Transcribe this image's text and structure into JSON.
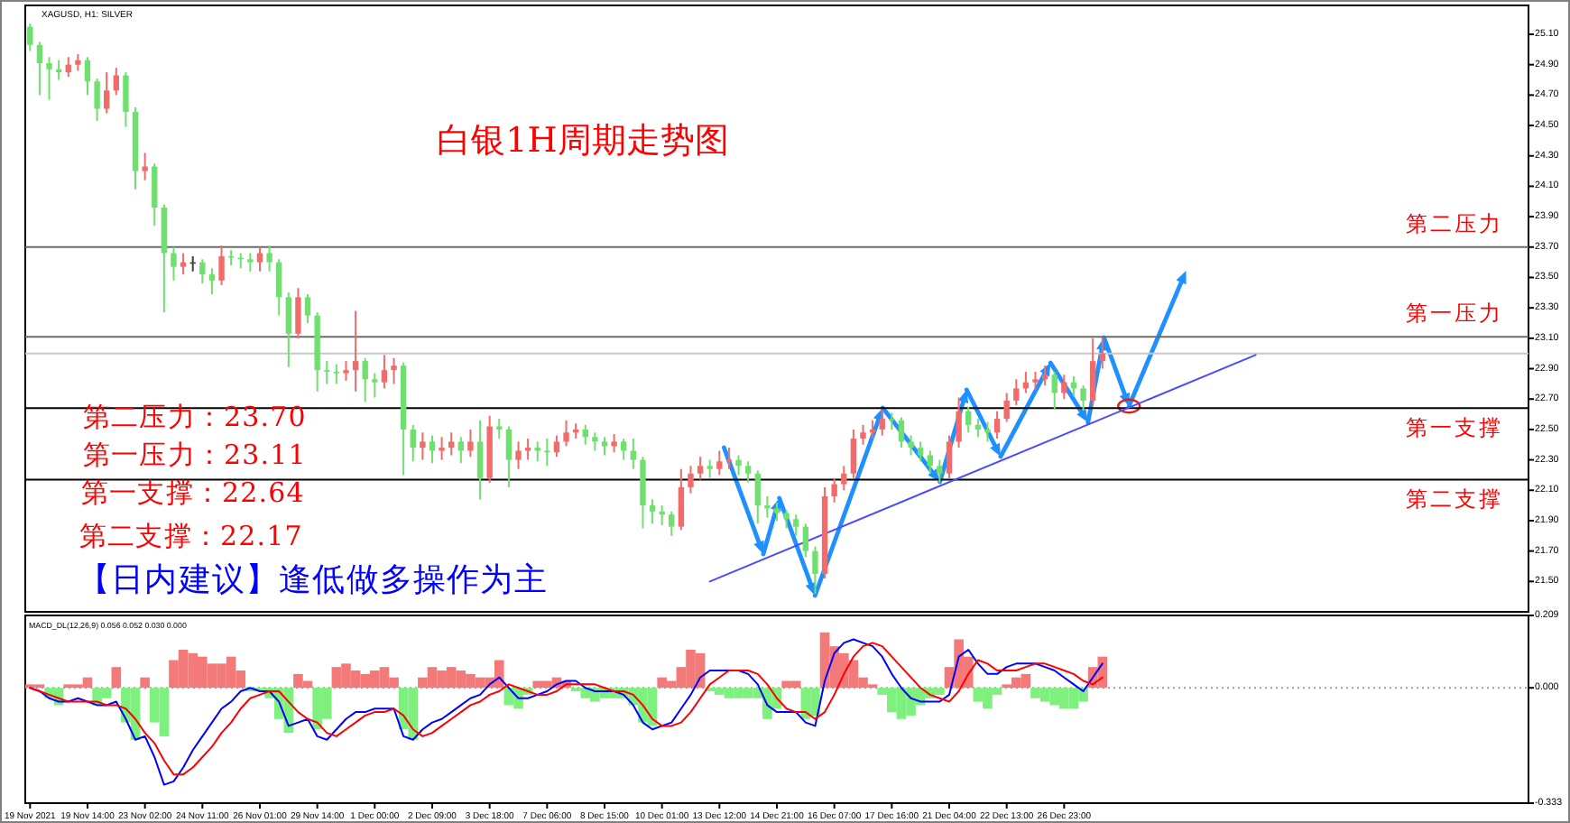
{
  "chart_data": [
    {
      "type": "candlestick",
      "title": "白银1H周期走势图",
      "subtitle": "XAGUSD, H1: SILVER",
      "categories": [
        "19 Nov 2021",
        null,
        null,
        null,
        null,
        null,
        "19 Nov 14:00",
        null,
        null,
        null,
        null,
        null,
        "23 Nov 02:00",
        null,
        null,
        null,
        null,
        null,
        "24 Nov 11:00",
        null,
        null,
        null,
        null,
        null,
        "26 Nov 01:00",
        null,
        null,
        null,
        null,
        null,
        "29 Nov 14:00",
        null,
        null,
        null,
        null,
        null,
        "1 Dec 00:00",
        null,
        null,
        null,
        null,
        null,
        "2 Dec 09:00",
        null,
        null,
        null,
        null,
        null,
        "3 Dec 18:00",
        null,
        null,
        null,
        null,
        null,
        "7 Dec 06:00",
        null,
        null,
        null,
        null,
        null,
        "8 Dec 15:00",
        null,
        null,
        null,
        null,
        null,
        "10 Dec 01:00",
        null,
        null,
        null,
        null,
        null,
        "13 Dec 12:00",
        null,
        null,
        null,
        null,
        null,
        "14 Dec 21:00",
        null,
        null,
        null,
        null,
        null,
        "16 Dec 07:00",
        null,
        null,
        null,
        null,
        null,
        "17 Dec 16:00",
        null,
        null,
        null,
        null,
        null,
        "21 Dec 04:00",
        null,
        null,
        null,
        null,
        null,
        "22 Dec 13:00",
        null,
        null,
        null,
        null,
        null,
        "26 Dec 23:00",
        null,
        null,
        null,
        null,
        null,
        null,
        null,
        null,
        null,
        null,
        null,
        null,
        null,
        null,
        null,
        null,
        null,
        null,
        null,
        null,
        null,
        null,
        null,
        null,
        null,
        null,
        null,
        null,
        null,
        null,
        null,
        null,
        null,
        null,
        null,
        null,
        null,
        null,
        null,
        null,
        null,
        null,
        null,
        null,
        null,
        null,
        null,
        null
      ],
      "ohlc": [
        [
          25.15,
          25.17,
          24.99,
          25.03
        ],
        [
          25.03,
          25.05,
          24.7,
          24.91
        ],
        [
          24.91,
          24.95,
          24.67,
          24.87
        ],
        [
          24.87,
          24.93,
          24.8,
          24.85
        ],
        [
          24.85,
          24.95,
          24.82,
          24.9
        ],
        [
          24.9,
          24.97,
          24.86,
          24.93
        ],
        [
          24.93,
          24.95,
          24.7,
          24.79
        ],
        [
          24.79,
          24.81,
          24.53,
          24.61
        ],
        [
          24.61,
          24.85,
          24.58,
          24.73
        ],
        [
          24.73,
          24.88,
          24.7,
          24.83
        ],
        [
          24.83,
          24.85,
          24.49,
          24.59
        ],
        [
          24.59,
          24.62,
          24.08,
          24.2
        ],
        [
          24.2,
          24.32,
          24.14,
          24.23
        ],
        [
          24.23,
          24.25,
          23.84,
          23.96
        ],
        [
          23.96,
          23.98,
          23.27,
          23.66
        ],
        [
          23.66,
          23.7,
          23.48,
          23.57
        ],
        [
          23.57,
          23.66,
          23.52,
          23.6
        ],
        [
          23.6,
          23.64,
          23.54,
          23.6
        ],
        [
          23.6,
          23.62,
          23.46,
          23.52
        ],
        [
          23.52,
          23.56,
          23.39,
          23.48
        ],
        [
          23.48,
          23.71,
          23.45,
          23.64
        ],
        [
          23.64,
          23.68,
          23.58,
          23.63
        ],
        [
          23.63,
          23.66,
          23.56,
          23.62
        ],
        [
          23.62,
          23.66,
          23.54,
          23.6
        ],
        [
          23.6,
          23.7,
          23.54,
          23.66
        ],
        [
          23.66,
          23.71,
          23.54,
          23.6
        ],
        [
          23.6,
          23.62,
          23.25,
          23.37
        ],
        [
          23.37,
          23.4,
          22.91,
          23.13
        ],
        [
          23.13,
          23.43,
          23.1,
          23.37
        ],
        [
          23.37,
          23.39,
          23.2,
          23.25
        ],
        [
          23.25,
          23.27,
          22.75,
          22.89
        ],
        [
          22.89,
          22.95,
          22.8,
          22.88
        ],
        [
          22.88,
          22.93,
          22.8,
          22.87
        ],
        [
          22.87,
          22.95,
          22.82,
          22.89
        ],
        [
          22.89,
          23.28,
          22.75,
          22.95
        ],
        [
          22.95,
          22.97,
          22.68,
          22.83
        ],
        [
          22.83,
          22.87,
          22.71,
          22.81
        ],
        [
          22.81,
          22.99,
          22.77,
          22.89
        ],
        [
          22.89,
          22.97,
          22.8,
          22.92
        ],
        [
          22.92,
          22.94,
          22.2,
          22.5
        ],
        [
          22.5,
          22.53,
          22.29,
          22.38
        ],
        [
          22.38,
          22.48,
          22.3,
          22.42
        ],
        [
          22.42,
          22.46,
          22.28,
          22.36
        ],
        [
          22.36,
          22.45,
          22.3,
          22.38
        ],
        [
          22.38,
          22.48,
          22.33,
          22.42
        ],
        [
          22.42,
          22.45,
          22.28,
          22.36
        ],
        [
          22.36,
          22.5,
          22.32,
          22.42
        ],
        [
          22.42,
          22.56,
          22.04,
          22.18
        ],
        [
          22.18,
          22.59,
          22.15,
          22.52
        ],
        [
          22.52,
          22.57,
          22.44,
          22.5
        ],
        [
          22.5,
          22.52,
          22.12,
          22.3
        ],
        [
          22.3,
          22.42,
          22.24,
          22.36
        ],
        [
          22.36,
          22.44,
          22.3,
          22.38
        ],
        [
          22.38,
          22.42,
          22.29,
          22.36
        ],
        [
          22.36,
          22.44,
          22.26,
          22.35
        ],
        [
          22.35,
          22.46,
          22.32,
          22.42
        ],
        [
          22.42,
          22.56,
          22.39,
          22.48
        ],
        [
          22.48,
          22.54,
          22.44,
          22.5
        ],
        [
          22.5,
          22.53,
          22.4,
          22.45
        ],
        [
          22.45,
          22.48,
          22.36,
          22.42
        ],
        [
          22.42,
          22.45,
          22.33,
          22.39
        ],
        [
          22.39,
          22.47,
          22.35,
          22.42
        ],
        [
          22.42,
          22.44,
          22.3,
          22.36
        ],
        [
          22.36,
          22.44,
          22.24,
          22.3
        ],
        [
          22.3,
          22.32,
          21.85,
          22.0
        ],
        [
          22.0,
          22.04,
          21.88,
          21.96
        ],
        [
          21.96,
          22.0,
          21.87,
          21.94
        ],
        [
          21.94,
          21.96,
          21.8,
          21.86
        ],
        [
          21.86,
          22.24,
          21.84,
          22.12
        ],
        [
          22.12,
          22.26,
          22.08,
          22.21
        ],
        [
          22.21,
          22.32,
          22.17,
          22.26
        ],
        [
          22.26,
          22.3,
          22.18,
          22.24
        ],
        [
          22.24,
          22.36,
          22.2,
          22.29
        ],
        [
          22.29,
          22.38,
          22.24,
          22.3
        ],
        [
          22.3,
          22.33,
          22.2,
          22.26
        ],
        [
          22.26,
          22.29,
          22.15,
          22.21
        ],
        [
          22.21,
          22.23,
          21.88,
          22.0
        ],
        [
          22.0,
          22.06,
          21.92,
          21.98
        ],
        [
          21.98,
          22.02,
          21.9,
          21.95
        ],
        [
          21.95,
          21.97,
          21.85,
          21.91
        ],
        [
          21.91,
          21.94,
          21.8,
          21.86
        ],
        [
          21.86,
          21.88,
          21.66,
          21.7
        ],
        [
          21.7,
          21.73,
          21.42,
          21.55
        ],
        [
          21.55,
          22.12,
          21.52,
          22.06
        ],
        [
          22.06,
          22.18,
          22.02,
          22.14
        ],
        [
          22.14,
          22.26,
          22.1,
          22.21
        ],
        [
          22.21,
          22.5,
          22.18,
          22.44
        ],
        [
          22.44,
          22.53,
          22.4,
          22.48
        ],
        [
          22.48,
          22.56,
          22.44,
          22.5
        ],
        [
          22.5,
          22.63,
          22.46,
          22.57
        ],
        [
          22.57,
          22.61,
          22.5,
          22.56
        ],
        [
          22.56,
          22.58,
          22.38,
          22.42
        ],
        [
          22.42,
          22.46,
          22.33,
          22.38
        ],
        [
          22.38,
          22.42,
          22.29,
          22.33
        ],
        [
          22.33,
          22.36,
          22.21,
          22.26
        ],
        [
          22.26,
          22.3,
          22.15,
          22.21
        ],
        [
          22.21,
          22.46,
          22.18,
          22.42
        ],
        [
          22.42,
          22.71,
          22.38,
          22.62
        ],
        [
          22.62,
          22.65,
          22.48,
          22.53
        ],
        [
          22.53,
          22.57,
          22.45,
          22.5
        ],
        [
          22.5,
          22.55,
          22.42,
          22.48
        ],
        [
          22.48,
          22.62,
          22.44,
          22.57
        ],
        [
          22.57,
          22.74,
          22.55,
          22.69
        ],
        [
          22.69,
          22.83,
          22.66,
          22.77
        ],
        [
          22.77,
          22.88,
          22.74,
          22.81
        ],
        [
          22.81,
          22.88,
          22.76,
          22.83
        ],
        [
          22.83,
          22.92,
          22.79,
          22.86
        ],
        [
          22.86,
          22.88,
          22.63,
          22.74
        ],
        [
          22.74,
          22.86,
          22.7,
          22.81
        ],
        [
          22.81,
          22.85,
          22.72,
          22.77
        ],
        [
          22.77,
          22.79,
          22.63,
          22.69
        ],
        [
          22.69,
          23.1,
          22.66,
          22.95
        ],
        [
          22.95,
          23.1,
          22.9,
          23.0
        ],
        null,
        null,
        null,
        null,
        null,
        null,
        null,
        null,
        null,
        null,
        null,
        null,
        null,
        null,
        null,
        null,
        null,
        null,
        null,
        null,
        null,
        null,
        null,
        null,
        null,
        null,
        null,
        null,
        null,
        null,
        null,
        null,
        null,
        null,
        null,
        null,
        null,
        null,
        null,
        null,
        null,
        null,
        null,
        null
      ],
      "colors": [
        "#6fe06f",
        "#6fe06f",
        "#6fe06f",
        "#6fe06f",
        "#f26b6b",
        "#f26b6b",
        "#6fe06f",
        "#6fe06f",
        "#f26b6b",
        "#f26b6b",
        "#6fe06f",
        "#6fe06f",
        "#f26b6b",
        "#6fe06f",
        "#6fe06f",
        "#6fe06f",
        "#f26b6b",
        "#404040",
        "#6fe06f",
        "#6fe06f",
        "#f26b6b",
        "#6fe06f",
        "#6fe06f",
        "#6fe06f",
        "#f26b6b",
        "#6fe06f",
        "#6fe06f",
        "#6fe06f",
        "#f26b6b",
        "#6fe06f",
        "#6fe06f",
        "#6fe06f",
        "#6fe06f",
        "#f26b6b",
        "#f26b6b",
        "#6fe06f",
        "#6fe06f",
        "#f26b6b",
        "#f26b6b",
        "#6fe06f",
        "#6fe06f",
        "#f26b6b",
        "#6fe06f",
        "#f26b6b",
        "#f26b6b",
        "#6fe06f",
        "#f26b6b",
        "#6fe06f",
        "#f26b6b",
        "#6fe06f",
        "#6fe06f",
        "#f26b6b",
        "#f26b6b",
        "#6fe06f",
        "#6fe06f",
        "#f26b6b",
        "#f26b6b",
        "#f26b6b",
        "#6fe06f",
        "#6fe06f",
        "#6fe06f",
        "#f26b6b",
        "#6fe06f",
        "#6fe06f",
        "#6fe06f",
        "#6fe06f",
        "#6fe06f",
        "#6fe06f",
        "#f26b6b",
        "#f26b6b",
        "#f26b6b",
        "#6fe06f",
        "#f26b6b",
        "#f26b6b",
        "#6fe06f",
        "#6fe06f",
        "#6fe06f",
        "#6fe06f",
        "#6fe06f",
        "#6fe06f",
        "#6fe06f",
        "#6fe06f",
        "#6fe06f",
        "#f26b6b",
        "#f26b6b",
        "#f26b6b",
        "#f26b6b",
        "#f26b6b",
        "#f26b6b",
        "#f26b6b",
        "#6fe06f",
        "#6fe06f",
        "#6fe06f",
        "#6fe06f",
        "#6fe06f",
        "#6fe06f",
        "#f26b6b",
        "#f26b6b",
        "#6fe06f",
        "#6fe06f",
        "#6fe06f",
        "#f26b6b",
        "#f26b6b",
        "#f26b6b",
        "#f26b6b",
        "#f26b6b",
        "#f26b6b",
        "#6fe06f",
        "#f26b6b",
        "#6fe06f",
        "#6fe06f",
        "#f26b6b",
        "#f26b6b",
        null,
        null,
        null,
        null,
        null,
        null,
        null,
        null,
        null,
        null,
        null,
        null,
        null,
        null,
        null,
        null,
        null,
        null,
        null,
        null,
        null,
        null,
        null,
        null,
        null,
        null,
        null,
        null,
        null,
        null,
        null,
        null,
        null,
        null,
        null,
        null,
        null,
        null,
        null,
        null,
        null,
        null,
        null,
        null
      ],
      "series": [
        {
          "type": "line",
          "color": "#4b4bff",
          "values": [
            null,
            null,
            null,
            null,
            null,
            null,
            null,
            null,
            null,
            null,
            null,
            null,
            null,
            null,
            null,
            null,
            null,
            null,
            null,
            null,
            null,
            null,
            null,
            null,
            null,
            null,
            null,
            null,
            null,
            null,
            null,
            null,
            null,
            null,
            null,
            null,
            null,
            null,
            null,
            null,
            null,
            null,
            null,
            null,
            null,
            null,
            null,
            null,
            null,
            null,
            null,
            null,
            null,
            null,
            null,
            null,
            null,
            null,
            null,
            null,
            null,
            null,
            null,
            null,
            null,
            null,
            null,
            null,
            null,
            null,
            null,
            21.5,
            null,
            null,
            null,
            null,
            null,
            null,
            null,
            null,
            null,
            null,
            null,
            null,
            null,
            null,
            null,
            null,
            null,
            null,
            null,
            null,
            null,
            null,
            null,
            null,
            null,
            null,
            null,
            null,
            null,
            null,
            null,
            null,
            null,
            null,
            null,
            null,
            null,
            null,
            null,
            null,
            null,
            null,
            null,
            null,
            null,
            null,
            null,
            null,
            null,
            null,
            null,
            null,
            null,
            null,
            null,
            null,
            22.99,
            null,
            null,
            null,
            null,
            null,
            null,
            null,
            null,
            null,
            null,
            null,
            null,
            null,
            null,
            null,
            null,
            null,
            null,
            null,
            null,
            null,
            null,
            null,
            null,
            null,
            null,
            null,
            null
          ]
        }
      ],
      "ylim": [
        21.3,
        25.29
      ],
      "yticks": [
        {
          "value": 21.5,
          "label": "21.50"
        },
        {
          "value": 21.7,
          "label": "21.70"
        },
        {
          "value": 21.9,
          "label": "21.90"
        },
        {
          "value": 22.1,
          "label": "22.10"
        },
        {
          "value": 22.3,
          "label": "22.30"
        },
        {
          "value": 22.5,
          "label": "22.50"
        },
        {
          "value": 22.7,
          "label": "22.70"
        },
        {
          "value": 22.9,
          "label": "22.90"
        },
        {
          "value": 23.1,
          "label": "23.10"
        },
        {
          "value": 23.3,
          "label": "23.30"
        },
        {
          "value": 23.5,
          "label": "23.50"
        },
        {
          "value": 23.7,
          "label": "23.70"
        },
        {
          "value": 23.9,
          "label": "23.90"
        },
        {
          "value": 24.1,
          "label": "24.10"
        },
        {
          "value": 24.3,
          "label": "24.30"
        },
        {
          "value": 24.5,
          "label": "24.50"
        },
        {
          "value": 24.7,
          "label": "24.70"
        },
        {
          "value": 24.9,
          "label": "24.90"
        },
        {
          "value": 25.1,
          "label": "25.10"
        }
      ],
      "ref_lines": [
        {
          "axis": "y",
          "value": 23.7,
          "label": "第二压力",
          "color": "#6b6b6b"
        },
        {
          "axis": "y",
          "value": 23.11,
          "label": "第一压力",
          "color": "#6b6b6b"
        },
        {
          "axis": "y",
          "value": 22.64,
          "label": "第一支撑",
          "color": "#000000"
        },
        {
          "axis": "y",
          "value": 22.17,
          "label": "第二支撑",
          "color": "#000000"
        },
        {
          "axis": "y",
          "value": 23.0,
          "color": "#c8c8c8"
        }
      ],
      "annotations": [
        "第二压力：23.70",
        "第一压力：23.11",
        "第一支撑：22.64",
        "第二支撑：22.17",
        "【日内建议】逢低做多操作为主"
      ],
      "tick_labels": "y"
    },
    {
      "type": "bar",
      "title": "MACD_DL(12,26,9) 0.056 0.052 0.030 0.000",
      "categories": [
        "19 Nov 2021",
        null,
        null,
        null,
        null,
        null,
        "19 Nov 14:00",
        null,
        null,
        null,
        null,
        null,
        "23 Nov 02:00",
        null,
        null,
        null,
        null,
        null,
        "24 Nov 11:00",
        null,
        null,
        null,
        null,
        null,
        "26 Nov 01:00",
        null,
        null,
        null,
        null,
        null,
        "29 Nov 14:00",
        null,
        null,
        null,
        null,
        null,
        "1 Dec 00:00",
        null,
        null,
        null,
        null,
        null,
        "2 Dec 09:00",
        null,
        null,
        null,
        null,
        null,
        "3 Dec 18:00",
        null,
        null,
        null,
        null,
        null,
        "7 Dec 06:00",
        null,
        null,
        null,
        null,
        null,
        "8 Dec 15:00",
        null,
        null,
        null,
        null,
        null,
        "10 Dec 01:00",
        null,
        null,
        null,
        null,
        null,
        "13 Dec 12:00",
        null,
        null,
        null,
        null,
        null,
        "14 Dec 21:00",
        null,
        null,
        null,
        null,
        null,
        "16 Dec 07:00",
        null,
        null,
        null,
        null,
        null,
        "17 Dec 16:00",
        null,
        null,
        null,
        null,
        null,
        "21 Dec 04:00",
        null,
        null,
        null,
        null,
        null,
        "22 Dec 13:00",
        null,
        null,
        null,
        null,
        null,
        "26 Dec 23:00",
        null,
        null,
        null,
        null,
        null,
        null,
        null,
        null,
        null,
        null,
        null,
        null,
        null,
        null,
        null,
        null,
        null,
        null,
        null,
        null,
        null,
        null,
        null,
        null,
        null,
        null,
        null,
        null,
        null,
        null,
        null,
        null,
        null,
        null,
        null,
        null,
        null,
        null,
        null,
        null,
        null,
        null,
        null,
        null,
        null,
        null,
        null,
        null
      ],
      "series": [
        {
          "colors": [
            "#f47a7a",
            "#f47a7a",
            "#7ef07e",
            "#7ef07e",
            "#f47a7a",
            "#f47a7a",
            "#f47a7a",
            "#7ef07e",
            "#7ef07e",
            "#f47a7a",
            "#7ef07e",
            "#7ef07e",
            "#f47a7a",
            "#7ef07e",
            "#7ef07e",
            "#f47a7a",
            "#f47a7a",
            "#f47a7a",
            "#f47a7a",
            "#f47a7a",
            "#f47a7a",
            "#f47a7a",
            "#f47a7a",
            "#7ef07e",
            "#7ef07e",
            "#7ef07e",
            "#7ef07e",
            "#7ef07e",
            "#f47a7a",
            "#f47a7a",
            "#7ef07e",
            "#7ef07e",
            "#f47a7a",
            "#f47a7a",
            "#f47a7a",
            "#f47a7a",
            "#f47a7a",
            "#f47a7a",
            "#f47a7a",
            "#7ef07e",
            "#7ef07e",
            "#f47a7a",
            "#f47a7a",
            "#f47a7a",
            "#f47a7a",
            "#f47a7a",
            "#f47a7a",
            "#f47a7a",
            "#f47a7a",
            "#f47a7a",
            "#7ef07e",
            "#7ef07e",
            "#7ef07e",
            "#f47a7a",
            "#f47a7a",
            "#f47a7a",
            "#f47a7a",
            "#7ef07e",
            "#7ef07e",
            "#7ef07e",
            "#7ef07e",
            "#7ef07e",
            "#7ef07e",
            "#7ef07e",
            "#7ef07e",
            "#7ef07e",
            "#f47a7a",
            "#f47a7a",
            "#f47a7a",
            "#f47a7a",
            "#f47a7a",
            "#7ef07e",
            "#7ef07e",
            "#7ef07e",
            "#7ef07e",
            "#7ef07e",
            "#7ef07e",
            "#7ef07e",
            "#7ef07e",
            "#f47a7a",
            "#f47a7a",
            "#7ef07e",
            "#7ef07e",
            "#f47a7a",
            "#f47a7a",
            "#f47a7a",
            "#f47a7a",
            "#f47a7a",
            "#f47a7a",
            "#7ef07e",
            "#7ef07e",
            "#7ef07e",
            "#7ef07e",
            "#7ef07e",
            "#7ef07e",
            "#7ef07e",
            "#f47a7a",
            "#f47a7a",
            "#f47a7a",
            "#7ef07e",
            "#7ef07e",
            "#7ef07e",
            "#f47a7a",
            "#f47a7a",
            "#f47a7a",
            "#7ef07e",
            "#7ef07e",
            "#7ef07e",
            "#7ef07e",
            "#7ef07e",
            "#7ef07e",
            "#f47a7a",
            "#f47a7a",
            null,
            null,
            null,
            null,
            null,
            null,
            null,
            null,
            null,
            null,
            null,
            null,
            null,
            null,
            null,
            null,
            null,
            null,
            null,
            null,
            null,
            null,
            null,
            null,
            null,
            null,
            null,
            null,
            null,
            null,
            null,
            null,
            null,
            null,
            null,
            null,
            null,
            null,
            null,
            null,
            null,
            null,
            null,
            null
          ],
          "values": [
            0.01,
            0.01,
            -0.03,
            -0.05,
            0.01,
            0.01,
            0.03,
            -0.05,
            -0.03,
            0.06,
            -0.1,
            -0.15,
            0.03,
            -0.1,
            -0.14,
            0.08,
            0.11,
            0.1,
            0.09,
            0.07,
            0.07,
            0.09,
            0.05,
            -0.01,
            -0.01,
            -0.03,
            -0.09,
            -0.13,
            0.04,
            0.02,
            -0.12,
            -0.09,
            0.06,
            0.07,
            0.05,
            0.04,
            0.05,
            0.06,
            0.03,
            -0.12,
            -0.15,
            0.03,
            0.06,
            0.05,
            0.06,
            0.05,
            0.04,
            0.03,
            0.03,
            0.08,
            -0.05,
            -0.06,
            -0.02,
            0.02,
            0.02,
            0.03,
            0.02,
            -0.01,
            -0.03,
            -0.04,
            -0.03,
            -0.03,
            -0.03,
            -0.05,
            -0.1,
            -0.11,
            0.03,
            0.02,
            0.06,
            0.11,
            0.1,
            -0.01,
            -0.02,
            -0.03,
            -0.03,
            -0.03,
            -0.03,
            -0.09,
            -0.06,
            0.02,
            0.02,
            -0.09,
            -0.08,
            0.16,
            0.12,
            0.1,
            0.08,
            0.03,
            0.01,
            -0.02,
            -0.07,
            -0.09,
            -0.08,
            -0.05,
            -0.03,
            -0.02,
            0.06,
            0.14,
            0.09,
            -0.04,
            -0.06,
            -0.02,
            0.01,
            0.03,
            0.04,
            -0.03,
            -0.04,
            -0.05,
            -0.06,
            -0.06,
            -0.04,
            0.06,
            0.09,
            null,
            null,
            null,
            null,
            null,
            null,
            null,
            null,
            null,
            null,
            null,
            null,
            null,
            null,
            null,
            null,
            null,
            null,
            null,
            null,
            null,
            null,
            null,
            null,
            null,
            null,
            null,
            null,
            null,
            null,
            null,
            null,
            null,
            null,
            null,
            null,
            null,
            null,
            null,
            null,
            null,
            null,
            null,
            null
          ]
        },
        {
          "type": "line",
          "color": "#0000ff",
          "values": [
            0.0,
            -0.01,
            -0.03,
            -0.04,
            -0.04,
            -0.03,
            -0.04,
            -0.05,
            -0.05,
            -0.04,
            -0.09,
            -0.15,
            -0.14,
            -0.2,
            -0.28,
            -0.27,
            -0.23,
            -0.18,
            -0.14,
            -0.1,
            -0.06,
            -0.04,
            -0.01,
            0.0,
            -0.01,
            -0.01,
            -0.04,
            -0.11,
            -0.1,
            -0.09,
            -0.14,
            -0.15,
            -0.12,
            -0.09,
            -0.07,
            -0.07,
            -0.06,
            -0.06,
            -0.06,
            -0.14,
            -0.15,
            -0.12,
            -0.1,
            -0.09,
            -0.07,
            -0.05,
            -0.03,
            -0.02,
            0.01,
            0.03,
            0.0,
            -0.03,
            -0.03,
            -0.02,
            -0.01,
            0.01,
            0.02,
            0.02,
            0.0,
            -0.01,
            -0.01,
            -0.01,
            -0.02,
            -0.05,
            -0.1,
            -0.12,
            -0.11,
            -0.1,
            -0.06,
            -0.02,
            0.03,
            0.05,
            0.05,
            0.05,
            0.05,
            0.04,
            0.01,
            -0.05,
            -0.07,
            -0.07,
            -0.07,
            -0.1,
            -0.11,
            0.02,
            0.1,
            0.13,
            0.14,
            0.13,
            0.12,
            0.09,
            0.04,
            0.0,
            -0.03,
            -0.04,
            -0.04,
            -0.04,
            -0.02,
            0.09,
            0.11,
            0.07,
            0.04,
            0.04,
            0.06,
            0.07,
            0.07,
            0.07,
            0.06,
            0.05,
            0.03,
            0.01,
            -0.01,
            0.03,
            0.07,
            null,
            null,
            null,
            null,
            null,
            null,
            null,
            null,
            null,
            null,
            null,
            null,
            null,
            null,
            null,
            null,
            null,
            null,
            null,
            null,
            null,
            null,
            null,
            null,
            null,
            null,
            null,
            null,
            null,
            null,
            null,
            null,
            null,
            null,
            null,
            null,
            null,
            null,
            null,
            null,
            null,
            null,
            null,
            null
          ]
        },
        {
          "type": "line",
          "color": "#ff0000",
          "values": [
            0.0,
            -0.01,
            -0.02,
            -0.03,
            -0.04,
            -0.04,
            -0.04,
            -0.04,
            -0.05,
            -0.05,
            -0.06,
            -0.09,
            -0.13,
            -0.16,
            -0.21,
            -0.25,
            -0.25,
            -0.23,
            -0.2,
            -0.17,
            -0.13,
            -0.1,
            -0.06,
            -0.03,
            -0.02,
            -0.01,
            -0.01,
            -0.04,
            -0.07,
            -0.09,
            -0.1,
            -0.13,
            -0.14,
            -0.12,
            -0.1,
            -0.08,
            -0.07,
            -0.07,
            -0.06,
            -0.08,
            -0.12,
            -0.14,
            -0.13,
            -0.11,
            -0.09,
            -0.07,
            -0.05,
            -0.04,
            -0.02,
            -0.01,
            0.01,
            0.0,
            -0.01,
            -0.02,
            -0.02,
            -0.01,
            0.01,
            0.01,
            0.01,
            0.01,
            0.0,
            -0.01,
            -0.01,
            -0.02,
            -0.05,
            -0.09,
            -0.11,
            -0.11,
            -0.1,
            -0.07,
            -0.03,
            0.01,
            0.03,
            0.05,
            0.05,
            0.05,
            0.04,
            0.01,
            -0.03,
            -0.06,
            -0.07,
            -0.07,
            -0.09,
            -0.07,
            -0.02,
            0.04,
            0.09,
            0.12,
            0.13,
            0.12,
            0.09,
            0.06,
            0.03,
            0.0,
            -0.02,
            -0.03,
            -0.04,
            -0.01,
            0.04,
            0.08,
            0.07,
            0.05,
            0.05,
            0.05,
            0.06,
            0.07,
            0.07,
            0.06,
            0.05,
            0.04,
            0.02,
            0.01,
            0.03,
            null,
            null,
            null,
            null,
            null,
            null,
            null,
            null,
            null,
            null,
            null,
            null,
            null,
            null,
            null,
            null,
            null,
            null,
            null,
            null,
            null,
            null,
            null,
            null,
            null,
            null,
            null,
            null,
            null,
            null,
            null,
            null,
            null,
            null,
            null,
            null,
            null,
            null,
            null,
            null,
            null,
            null,
            null,
            null
          ]
        }
      ],
      "ylim": [
        -0.333,
        0.209
      ],
      "yticks": [
        -0.333,
        {
          "value": 0,
          "label": "0.000"
        },
        0.209
      ],
      "ref_lines": [
        {
          "axis": "y",
          "value": 0,
          "color": "#a0a0a0",
          "line_style": "dotted"
        }
      ]
    }
  ]
}
